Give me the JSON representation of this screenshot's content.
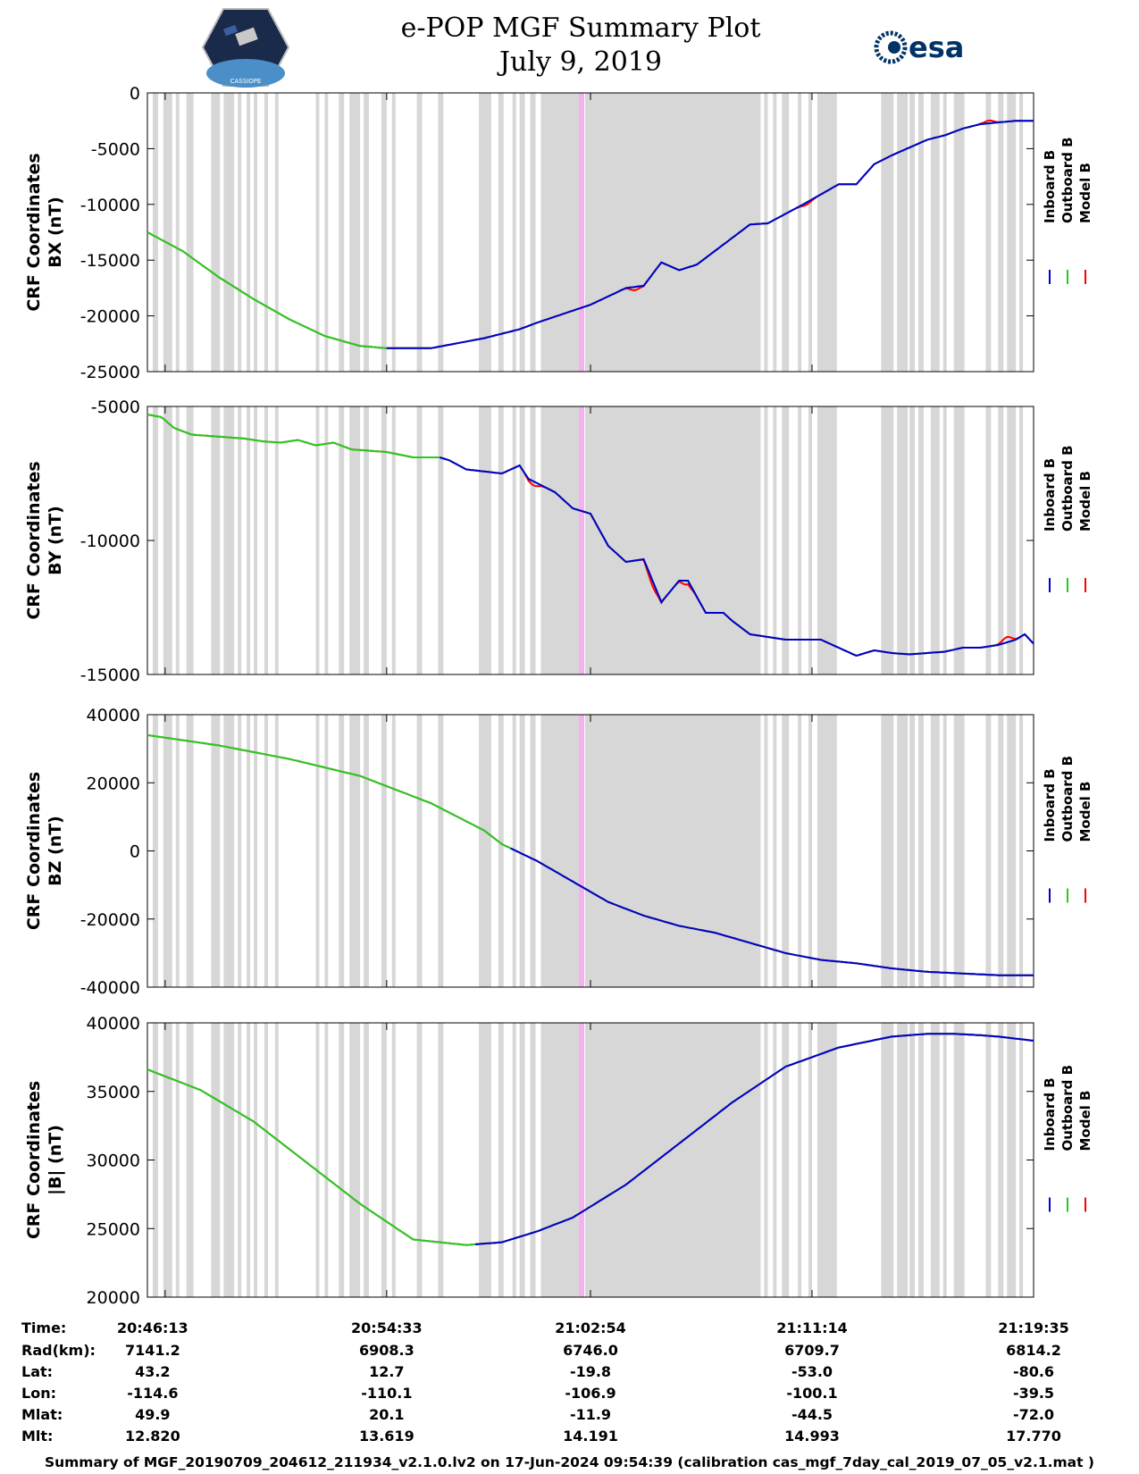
{
  "title": {
    "line1": "e-POP MGF Summary Plot",
    "line2": "July 9, 2019"
  },
  "logos": {
    "left": "cassiope-mission-logo",
    "left_text": "CASSIOPE",
    "right": "esa",
    "right_text": "esa"
  },
  "colors": {
    "inboard": "#0000cc",
    "outboard": "#22cc22",
    "model": "#ff0000",
    "gap_band": "#d7d7d7",
    "highlight_band": "#f5b0f0"
  },
  "legend": [
    "Inboard B",
    "Outboard B",
    "Model B"
  ],
  "chart_data": [
    {
      "type": "line",
      "ylabel_line1": "CRF Coordinates",
      "ylabel_line2": "BX (nT)",
      "ylim": [
        -25000,
        0
      ],
      "yticks": [
        0,
        -5000,
        -10000,
        -15000,
        -20000,
        -25000
      ],
      "ytick_labels": [
        "0",
        "-5000",
        "-10000",
        "-15000",
        "-20000",
        "-25000"
      ],
      "x_minutes": [
        0,
        2,
        4,
        6,
        8,
        10,
        12,
        13.5,
        16,
        19,
        21,
        22,
        25,
        27,
        28,
        29,
        30,
        31,
        32,
        33,
        34,
        35,
        37,
        39,
        40,
        41,
        42,
        44,
        45,
        46,
        47,
        49,
        50
      ],
      "outboard_values": [
        -12500,
        -14200,
        -16500,
        -18500,
        -20300,
        -21800,
        -22700,
        -22900,
        -22900,
        -22000,
        -21200,
        -20600,
        -19000,
        -17500,
        -17300,
        -15200,
        -15900,
        -15400,
        -14200,
        -13000,
        -11800,
        -11700,
        -10000,
        -8200,
        -8200,
        -6400,
        -5600,
        -4200,
        -3800,
        -3200,
        -2800,
        -2500,
        -2500
      ],
      "inboard_from_minute": 13.5,
      "model_offsets": [
        {
          "x": 27.5,
          "dy": -300
        },
        {
          "x": 37.2,
          "dy": -200
        },
        {
          "x": 47.5,
          "dy": 250
        }
      ]
    },
    {
      "type": "line",
      "ylabel_line1": "CRF Coordinates",
      "ylabel_line2": "BY (nT)",
      "ylim": [
        -15000,
        -5000
      ],
      "yticks": [
        -5000,
        -10000,
        -15000
      ],
      "ytick_labels": [
        "-5000",
        "-10000",
        "-15000"
      ],
      "x_minutes": [
        0,
        0.8,
        1.5,
        2.5,
        3.5,
        4.5,
        5.5,
        6.5,
        7.5,
        8.5,
        9.5,
        10.5,
        11.5,
        12.5,
        13.5,
        15,
        16.5,
        17,
        18,
        20,
        21,
        21.5,
        23,
        24,
        25,
        26,
        27,
        28,
        29,
        30,
        30.5,
        31.5,
        32.5,
        33,
        34,
        35,
        36,
        38,
        40,
        41,
        42,
        43,
        44,
        45,
        46,
        47,
        48,
        49,
        49.5,
        50
      ],
      "outboard_values": [
        -5300,
        -5400,
        -5800,
        -6050,
        -6100,
        -6150,
        -6200,
        -6300,
        -6350,
        -6250,
        -6450,
        -6350,
        -6600,
        -6650,
        -6700,
        -6900,
        -6900,
        -7000,
        -7350,
        -7500,
        -7200,
        -7700,
        -8200,
        -8800,
        -9000,
        -10200,
        -10800,
        -10700,
        -12300,
        -11500,
        -11500,
        -12700,
        -12700,
        -13000,
        -13500,
        -13600,
        -13700,
        -13700,
        -14300,
        -14100,
        -14200,
        -14250,
        -14200,
        -14150,
        -14000,
        -14000,
        -13900,
        -13700,
        -13500,
        -13850
      ],
      "inboard_from_minute": 16.5,
      "model_offsets": [
        {
          "x": 21.8,
          "dy": -150
        },
        {
          "x": 28.5,
          "dy": -200
        },
        {
          "x": 30.4,
          "dy": -150
        },
        {
          "x": 48.5,
          "dy": 200
        }
      ]
    },
    {
      "type": "line",
      "ylabel_line1": "CRF Coordinates",
      "ylabel_line2": "BZ (nT)",
      "ylim": [
        -40000,
        40000
      ],
      "yticks": [
        40000,
        20000,
        0,
        -20000,
        -40000
      ],
      "ytick_labels": [
        "40000",
        "20000",
        "0",
        "-20000",
        "-40000"
      ],
      "x_minutes": [
        0,
        4,
        8,
        12,
        16,
        19,
        20,
        22,
        24,
        26,
        28,
        30,
        32,
        34,
        36,
        38,
        40,
        42,
        44,
        46,
        48,
        50
      ],
      "outboard_values": [
        34000,
        31000,
        27000,
        22000,
        14000,
        6000,
        2000,
        -3000,
        -9000,
        -15000,
        -19000,
        -22000,
        -24000,
        -27000,
        -30000,
        -32000,
        -33000,
        -34500,
        -35500,
        -36000,
        -36500,
        -36500
      ],
      "inboard_from_minute": 20.5,
      "model_offsets": []
    },
    {
      "type": "line",
      "ylabel_line1": "CRF Coordinates",
      "ylabel_line2": "|B| (nT)",
      "ylim": [
        20000,
        40000
      ],
      "yticks": [
        40000,
        35000,
        30000,
        25000,
        20000
      ],
      "ytick_labels": [
        "40000",
        "35000",
        "30000",
        "25000",
        "20000"
      ],
      "x_minutes": [
        0,
        3,
        6,
        9,
        12,
        15,
        18,
        20,
        22,
        24,
        27,
        30,
        33,
        36,
        39,
        42,
        44,
        45.5,
        47,
        48,
        50
      ],
      "outboard_values": [
        36600,
        35100,
        32800,
        29800,
        26800,
        24200,
        23800,
        24000,
        24800,
        25800,
        28200,
        31200,
        34200,
        36800,
        38200,
        39000,
        39200,
        39200,
        39100,
        39000,
        38700
      ],
      "inboard_from_minute": 18.5,
      "model_offsets": []
    }
  ],
  "x_axis": {
    "range_minutes": [
      0,
      50
    ],
    "tick_minutes": [
      1,
      13.5,
      25,
      37.5,
      50
    ]
  },
  "gap_bands_minutes": [
    [
      0.3,
      0.6
    ],
    [
      0.9,
      1.4
    ],
    [
      1.6,
      1.8
    ],
    [
      2.2,
      2.6
    ],
    [
      3.6,
      4.1
    ],
    [
      4.3,
      4.9
    ],
    [
      5.1,
      5.3
    ],
    [
      5.6,
      5.8
    ],
    [
      6.0,
      6.2
    ],
    [
      6.6,
      6.8
    ],
    [
      7.2,
      7.4
    ],
    [
      9.5,
      9.7
    ],
    [
      10.0,
      10.2
    ],
    [
      10.8,
      11.1
    ],
    [
      11.4,
      12.0
    ],
    [
      12.2,
      12.5
    ],
    [
      13.2,
      13.5
    ],
    [
      13.8,
      14.0
    ],
    [
      15.2,
      15.5
    ],
    [
      16.4,
      16.7
    ],
    [
      18.7,
      19.4
    ],
    [
      19.8,
      20.1
    ],
    [
      20.6,
      20.8
    ],
    [
      21.0,
      21.3
    ],
    [
      21.6,
      21.9
    ],
    [
      22.2,
      24.6
    ],
    [
      24.7,
      34.6
    ],
    [
      34.8,
      35.0
    ],
    [
      35.3,
      35.5
    ],
    [
      35.8,
      36.2
    ],
    [
      36.7,
      36.9
    ],
    [
      37.3,
      37.5
    ],
    [
      37.8,
      38.9
    ],
    [
      41.4,
      42.1
    ],
    [
      42.3,
      42.9
    ],
    [
      43.0,
      43.3
    ],
    [
      43.5,
      43.8
    ],
    [
      44.2,
      44.7
    ],
    [
      44.9,
      45.1
    ],
    [
      45.5,
      46.1
    ],
    [
      47.3,
      47.6
    ],
    [
      48.0,
      48.3
    ],
    [
      48.5,
      49.0
    ],
    [
      49.2,
      49.4
    ]
  ],
  "highlight_band_minutes": [
    24.35,
    24.65
  ],
  "footer": {
    "labels": [
      "Time:",
      "Rad(km):",
      "Lat:",
      "Lon:",
      "Mlat:",
      "Mlt:"
    ],
    "columns": [
      [
        "20:46:13",
        "7141.2",
        "43.2",
        "-114.6",
        "49.9",
        "12.820"
      ],
      [
        "20:54:33",
        "6908.3",
        "12.7",
        "-110.1",
        "20.1",
        "13.619"
      ],
      [
        "21:02:54",
        "6746.0",
        "-19.8",
        "-106.9",
        "-11.9",
        "14.191"
      ],
      [
        "21:11:14",
        "6709.7",
        "-53.0",
        "-100.1",
        "-44.5",
        "14.993"
      ],
      [
        "21:19:35",
        "6814.2",
        "-80.6",
        "-39.5",
        "-72.0",
        "17.770"
      ]
    ]
  },
  "caption": "Summary of MGF_20190709_204612_211934_v2.1.0.lv2 on 17-Jun-2024 09:54:39 (calibration cas_mgf_7day_cal_2019_07_05_v2.1.mat )"
}
